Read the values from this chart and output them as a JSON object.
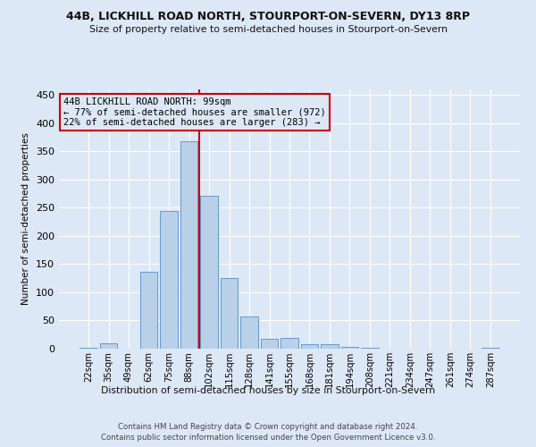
{
  "title": "44B, LICKHILL ROAD NORTH, STOURPORT-ON-SEVERN, DY13 8RP",
  "subtitle": "Size of property relative to semi-detached houses in Stourport-on-Severn",
  "xlabel": "Distribution of semi-detached houses by size in Stourport-on-Severn",
  "ylabel": "Number of semi-detached properties",
  "footer_line1": "Contains HM Land Registry data © Crown copyright and database right 2024.",
  "footer_line2": "Contains public sector information licensed under the Open Government Licence v3.0.",
  "annotation_title": "44B LICKHILL ROAD NORTH: 99sqm",
  "annotation_line1": "← 77% of semi-detached houses are smaller (972)",
  "annotation_line2": "22% of semi-detached houses are larger (283) →",
  "bar_color": "#b8d0e8",
  "bar_edge_color": "#6699cc",
  "vline_color": "#cc0000",
  "annotation_box_edge_color": "#cc0000",
  "categories": [
    "22sqm",
    "35sqm",
    "49sqm",
    "62sqm",
    "75sqm",
    "88sqm",
    "102sqm",
    "115sqm",
    "128sqm",
    "141sqm",
    "155sqm",
    "168sqm",
    "181sqm",
    "194sqm",
    "208sqm",
    "221sqm",
    "234sqm",
    "247sqm",
    "261sqm",
    "274sqm",
    "287sqm"
  ],
  "values": [
    2,
    10,
    0,
    137,
    244,
    368,
    271,
    125,
    57,
    18,
    19,
    8,
    8,
    3,
    1,
    0,
    0,
    0,
    0,
    0,
    1
  ],
  "ylim": [
    0,
    460
  ],
  "yticks": [
    0,
    50,
    100,
    150,
    200,
    250,
    300,
    350,
    400,
    450
  ],
  "vline_position": 5.5,
  "background_color": "#dce8f5",
  "grid_color": "#ffffff"
}
